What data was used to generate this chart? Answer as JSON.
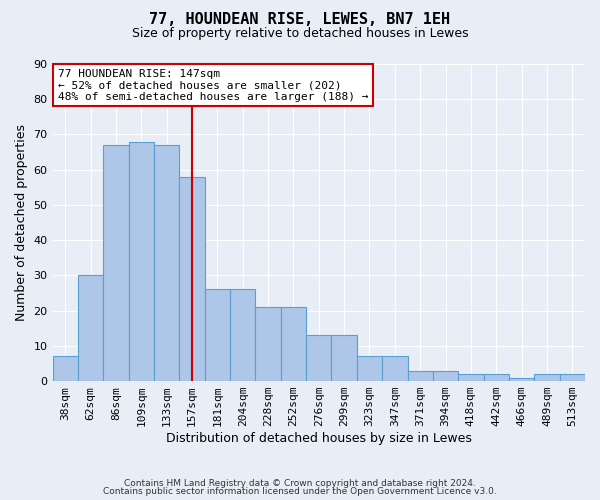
{
  "title": "77, HOUNDEAN RISE, LEWES, BN7 1EH",
  "subtitle": "Size of property relative to detached houses in Lewes",
  "xlabel": "Distribution of detached houses by size in Lewes",
  "ylabel": "Number of detached properties",
  "categories": [
    "38sqm",
    "62sqm",
    "86sqm",
    "109sqm",
    "133sqm",
    "157sqm",
    "181sqm",
    "204sqm",
    "228sqm",
    "252sqm",
    "276sqm",
    "299sqm",
    "323sqm",
    "347sqm",
    "371sqm",
    "394sqm",
    "418sqm",
    "442sqm",
    "466sqm",
    "489sqm",
    "513sqm"
  ],
  "values": [
    7,
    30,
    67,
    68,
    67,
    58,
    26,
    26,
    21,
    21,
    13,
    13,
    7,
    7,
    3,
    3,
    2,
    2,
    1,
    2,
    2
  ],
  "bar_color": "#aec6e8",
  "bar_edge_color": "#5a9fd4",
  "background_color": "#e8eef6",
  "red_line_index": 5,
  "red_line_color": "#cc0000",
  "annotation_line1": "77 HOUNDEAN RISE: 147sqm",
  "annotation_line2": "← 52% of detached houses are smaller (202)",
  "annotation_line3": "48% of semi-detached houses are larger (188) →",
  "annotation_box_color": "#ffffff",
  "annotation_box_edge": "#cc0000",
  "ylim": [
    0,
    90
  ],
  "yticks": [
    0,
    10,
    20,
    30,
    40,
    50,
    60,
    70,
    80,
    90
  ],
  "footer1": "Contains HM Land Registry data © Crown copyright and database right 2024.",
  "footer2": "Contains public sector information licensed under the Open Government Licence v3.0."
}
